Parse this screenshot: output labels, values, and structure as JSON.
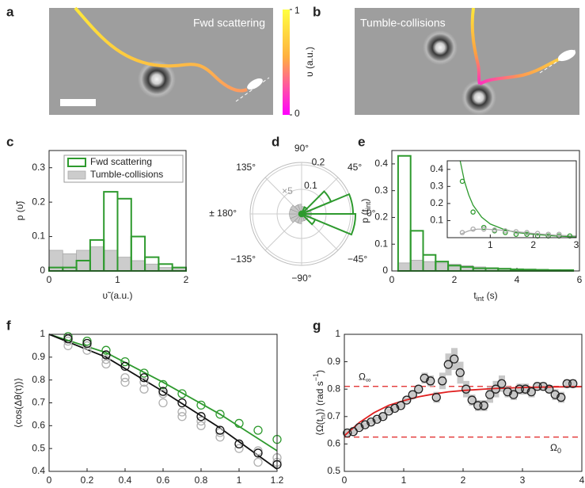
{
  "chart_data": [
    {
      "type": "image",
      "panel": "a",
      "title": "Fwd scattering",
      "colorbar": {
        "label": "υ (a.u.)",
        "lim": [
          0,
          1
        ],
        "ticks": [
          0,
          1
        ]
      }
    },
    {
      "type": "image",
      "panel": "b",
      "title": "Tumble-collisions"
    },
    {
      "type": "histogram",
      "panel": "c",
      "xlabel": "υ̃ (a.u.)",
      "ylabel": "p (υ̃)",
      "bins": [
        0,
        0.2,
        0.4,
        0.6,
        0.8,
        1,
        1.2,
        1.4,
        1.6,
        1.8,
        2
      ],
      "series": [
        {
          "name": "Fwd scattering",
          "color": "#2e9a2e",
          "style": "outline",
          "values": [
            0.01,
            0.01,
            0.03,
            0.09,
            0.23,
            0.21,
            0.1,
            0.04,
            0.02,
            0.01
          ]
        },
        {
          "name": "Tumble-collisions",
          "color": "#cccccc",
          "style": "filled",
          "values": [
            0.06,
            0.05,
            0.06,
            0.07,
            0.06,
            0.04,
            0.03,
            0.02,
            0.01,
            0.01
          ]
        }
      ],
      "xlim": [
        0,
        2
      ],
      "ylim": [
        0,
        0.35
      ],
      "xticks": [
        0,
        1,
        2
      ],
      "yticks": [
        0,
        0.1,
        0.2,
        0.3
      ],
      "legend": "upper right"
    },
    {
      "type": "polar",
      "panel": "d",
      "annotation": "×5",
      "theta_bins": [
        -180,
        -157.5,
        -135,
        -112.5,
        -90,
        -67.5,
        -45,
        -22.5,
        0,
        22.5,
        45,
        67.5,
        90,
        112.5,
        135,
        157.5,
        180
      ],
      "series": [
        {
          "color": "#2e9a2e",
          "style": "outline",
          "values": [
            0.01,
            0.01,
            0.01,
            0.01,
            0.01,
            0.01,
            0.06,
            0.22,
            0.21,
            0.13,
            0.03,
            0.01,
            0.01,
            0.01,
            0.01,
            0.01
          ]
        },
        {
          "color": "#c8c8c8",
          "style": "filled",
          "values": [
            0.05,
            0.05,
            0.04,
            0.04,
            0.03,
            0.03,
            0.03,
            0.04,
            0.04,
            0.03,
            0.03,
            0.03,
            0.04,
            0.04,
            0.05,
            0.05
          ]
        }
      ],
      "rlim": [
        0,
        0.21
      ],
      "rticks": [
        0.1,
        0.2
      ],
      "thetaticks": [
        {
          "value": 90,
          "label": "90°"
        },
        {
          "value": 45,
          "label": "45°"
        },
        {
          "value": 0,
          "label": "0°"
        },
        {
          "value": -45,
          "label": "−45°"
        },
        {
          "value": -90,
          "label": "−90°"
        },
        {
          "value": -135,
          "label": "−135°"
        },
        {
          "value": 180,
          "label": "± 180°"
        },
        {
          "value": 135,
          "label": "135°"
        }
      ]
    },
    {
      "type": "histogram",
      "panel": "e",
      "xlabel": [
        {
          "text": "t"
        },
        {
          "text": "int",
          "shift": "sub"
        },
        {
          "text": " (s)"
        }
      ],
      "ylabel": [
        {
          "text": "p (t"
        },
        {
          "text": "int",
          "shift": "sub"
        },
        {
          "text": ")"
        }
      ],
      "bins": [
        0.2,
        0.6,
        1,
        1.4,
        1.8,
        2.2,
        2.6,
        3,
        3.4,
        3.8,
        4.2,
        4.6,
        5,
        5.4,
        5.8
      ],
      "series": [
        {
          "color": "#2e9a2e",
          "style": "outline",
          "values": [
            0.43,
            0.15,
            0.06,
            0.035,
            0.02,
            0.015,
            0.01,
            0.01,
            0.008,
            0.006,
            0.005,
            0.004,
            0.003,
            0.003
          ]
        },
        {
          "color": "#cccccc",
          "style": "filled",
          "values": [
            0.03,
            0.04,
            0.035,
            0.03,
            0.025,
            0.02,
            0.015,
            0.012,
            0.01,
            0.008,
            0.007,
            0.006,
            0.005,
            0.004
          ]
        }
      ],
      "xlim": [
        0,
        6
      ],
      "ylim": [
        0,
        0.45
      ],
      "xticks": [
        0,
        2,
        4,
        6
      ],
      "yticks": [
        0,
        0.1,
        0.2,
        0.3,
        0.4
      ],
      "inset": {
        "xlim": [
          0,
          3
        ],
        "ylim": [
          0,
          0.45
        ],
        "xticks": [
          1,
          2,
          3
        ],
        "yticks": [
          0.1,
          0.2,
          0.3,
          0.4
        ],
        "series": [
          {
            "color": "#2e9a2e",
            "style": "marker",
            "x": [
              0.35,
              0.6,
              0.85,
              1.1,
              1.35,
              1.6,
              1.85,
              2.1,
              2.35,
              2.6,
              2.85
            ],
            "values": [
              0.33,
              0.15,
              0.06,
              0.04,
              0.03,
              0.02,
              0.02,
              0.01,
              0.01,
              0.01,
              0.01
            ]
          },
          {
            "color": "#aaaaaa",
            "style": "marker",
            "x": [
              0.35,
              0.6,
              0.85,
              1.1,
              1.35,
              1.6,
              1.85,
              2.1,
              2.35,
              2.6
            ],
            "values": [
              0.03,
              0.05,
              0.05,
              0.045,
              0.04,
              0.035,
              0.03,
              0.025,
              0.02,
              0.02
            ]
          },
          {
            "color": "#2e9a2e",
            "style": "line",
            "x": [
              0.3,
              0.4,
              0.5,
              0.6,
              0.8,
              1,
              1.3,
              1.6,
              2,
              2.5,
              3
            ],
            "values": [
              0.45,
              0.33,
              0.25,
              0.19,
              0.12,
              0.08,
              0.05,
              0.03,
              0.02,
              0.01,
              0.005
            ]
          },
          {
            "color": "#aaaaaa",
            "style": "line",
            "x": [
              0.3,
              0.5,
              0.7,
              0.9,
              1.2,
              1.6,
              2,
              2.5,
              3
            ],
            "values": [
              0.02,
              0.04,
              0.05,
              0.05,
              0.045,
              0.035,
              0.025,
              0.015,
              0.01
            ]
          }
        ]
      }
    },
    {
      "type": "scatter",
      "panel": "f",
      "xlabel": "τ (s)",
      "ylabel": "⟨cos(Δθ(τ))⟩",
      "series": [
        {
          "color": "#b0b0b0",
          "style": "marker",
          "x": [
            0.1,
            0.2,
            0.3,
            0.4,
            0.5,
            0.6,
            0.7,
            0.8,
            0.9,
            1,
            1.1,
            1.2
          ],
          "values": [
            0.97,
            0.95,
            0.89,
            0.81,
            0.79,
            0.74,
            0.66,
            0.62,
            0.57,
            0.52,
            0.49,
            0.46
          ]
        },
        {
          "color": "#b0b0b0",
          "style": "marker",
          "x": [
            0.1,
            0.2,
            0.3,
            0.4,
            0.5,
            0.6,
            0.7,
            0.8,
            0.9,
            1,
            1.1,
            1.2
          ],
          "values": [
            0.95,
            0.93,
            0.87,
            0.79,
            0.76,
            0.7,
            0.64,
            0.6,
            0.55,
            0.5,
            0.44,
            0.44
          ]
        },
        {
          "color": "#2e9a2e",
          "style": "marker",
          "x": [
            0.1,
            0.2,
            0.3,
            0.4,
            0.5,
            0.6,
            0.7,
            0.8,
            0.9,
            1,
            1.1,
            1.2
          ],
          "values": [
            0.99,
            0.97,
            0.93,
            0.88,
            0.83,
            0.78,
            0.74,
            0.69,
            0.65,
            0.61,
            0.58,
            0.54
          ]
        },
        {
          "color": "#111111",
          "style": "marker",
          "x": [
            0.1,
            0.2,
            0.3,
            0.4,
            0.5,
            0.6,
            0.7,
            0.8,
            0.9,
            1,
            1.1,
            1.2
          ],
          "values": [
            0.98,
            0.96,
            0.91,
            0.86,
            0.81,
            0.75,
            0.7,
            0.64,
            0.58,
            0.52,
            0.48,
            0.43
          ]
        },
        {
          "color": "#2e9a2e",
          "style": "line",
          "x": [
            0,
            0.3,
            0.6,
            0.9,
            1.2
          ],
          "values": [
            1,
            0.92,
            0.79,
            0.65,
            0.49
          ]
        },
        {
          "color": "#111111",
          "style": "line",
          "x": [
            0,
            0.3,
            0.6,
            0.9,
            1.2
          ],
          "values": [
            1,
            0.9,
            0.75,
            0.59,
            0.41
          ]
        }
      ],
      "xlim": [
        0,
        1.2
      ],
      "ylim": [
        0.4,
        1
      ],
      "xticks": [
        0,
        0.2,
        0.4,
        0.6,
        0.8,
        1,
        1.2
      ],
      "yticks": [
        0.4,
        0.5,
        0.6,
        0.7,
        0.8,
        0.9,
        1
      ]
    },
    {
      "type": "scatter",
      "panel": "g",
      "xlabel": [
        {
          "text": "t"
        },
        {
          "text": "n",
          "shift": "sub"
        },
        {
          "text": " (s)"
        }
      ],
      "ylabel": [
        {
          "text": "⟨Ω(t"
        },
        {
          "text": "n",
          "shift": "sub"
        },
        {
          "text": ")⟩ (rad s"
        },
        {
          "text": "−1",
          "shift": "sup"
        },
        {
          "text": ")"
        }
      ],
      "series": [
        {
          "color": "#222222",
          "style": "marker",
          "band_color": "#c8c8c8",
          "x": [
            0.05,
            0.15,
            0.25,
            0.35,
            0.45,
            0.55,
            0.65,
            0.75,
            0.85,
            0.95,
            1.05,
            1.15,
            1.25,
            1.35,
            1.45,
            1.55,
            1.65,
            1.75,
            1.85,
            1.95,
            2.05,
            2.15,
            2.25,
            2.35,
            2.45,
            2.55,
            2.65,
            2.75,
            2.85,
            2.95,
            3.05,
            3.15,
            3.25,
            3.35,
            3.45,
            3.55,
            3.65,
            3.75,
            3.85
          ],
          "values": [
            0.64,
            0.645,
            0.66,
            0.67,
            0.68,
            0.69,
            0.7,
            0.72,
            0.73,
            0.74,
            0.76,
            0.78,
            0.8,
            0.84,
            0.83,
            0.77,
            0.83,
            0.89,
            0.91,
            0.86,
            0.8,
            0.76,
            0.74,
            0.74,
            0.78,
            0.8,
            0.82,
            0.79,
            0.78,
            0.8,
            0.8,
            0.79,
            0.81,
            0.81,
            0.8,
            0.78,
            0.77,
            0.82,
            0.82
          ],
          "errors": [
            0.01,
            0.01,
            0.01,
            0.01,
            0.01,
            0.01,
            0.01,
            0.01,
            0.01,
            0.01,
            0.01,
            0.015,
            0.015,
            0.02,
            0.02,
            0.02,
            0.03,
            0.04,
            0.04,
            0.04,
            0.03,
            0.02,
            0.02,
            0.02,
            0.03,
            0.03,
            0.03,
            0.02,
            0.02,
            0.02,
            0.02,
            0.02,
            0.015,
            0.015,
            0.015,
            0.02,
            0.02,
            0.015,
            0.015
          ]
        },
        {
          "color": "#e02020",
          "style": "line",
          "x": [
            0,
            0.25,
            0.5,
            0.75,
            1,
            1.25,
            1.5,
            1.75,
            2,
            2.5,
            3,
            3.5,
            4
          ],
          "values": [
            0.63,
            0.678,
            0.714,
            0.741,
            0.758,
            0.772,
            0.782,
            0.79,
            0.795,
            0.802,
            0.806,
            0.808,
            0.809
          ]
        }
      ],
      "hlines": [
        {
          "y": 0.81,
          "color": "#e02020",
          "label": [
            {
              "text": "Ω"
            },
            {
              "text": "∞",
              "shift": "sub"
            }
          ]
        },
        {
          "y": 0.625,
          "color": "#e02020",
          "label": [
            {
              "text": "Ω"
            },
            {
              "text": "0",
              "shift": "sub"
            }
          ]
        }
      ],
      "xlim": [
        0,
        4
      ],
      "ylim": [
        0.5,
        1
      ],
      "xticks": [
        0,
        1,
        2,
        3,
        4
      ],
      "yticks": [
        0.5,
        0.6,
        0.7,
        0.8,
        0.9,
        1
      ]
    }
  ]
}
